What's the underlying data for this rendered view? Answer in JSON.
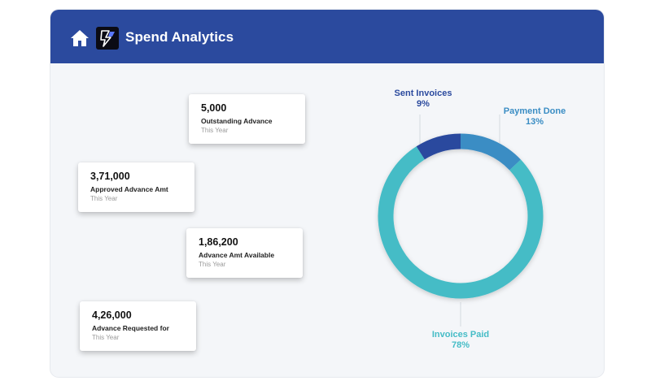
{
  "header": {
    "title": "Spend Analytics",
    "home_icon": "home-icon",
    "logo_icon": "lightning-logo-icon",
    "background": "#2b4a9e"
  },
  "cards": [
    {
      "value": "5,000",
      "label": "Outstanding Advance",
      "period": "This Year"
    },
    {
      "value": "3,71,000",
      "label": "Approved Advance Amt",
      "period": "This Year"
    },
    {
      "value": "1,86,200",
      "label": "Advance Amt Available",
      "period": "This Year"
    },
    {
      "value": "4,26,000",
      "label": "Advance Requested for",
      "period": "This Year"
    }
  ],
  "chart_data": {
    "type": "pie",
    "title": "",
    "categories": [
      "Sent Invoices",
      "Payment Done",
      "Invoices Paid"
    ],
    "values": [
      9,
      13,
      78
    ],
    "value_labels": [
      "9%",
      "13%",
      "78%"
    ],
    "colors": [
      "#2b4a9e",
      "#3a8dc4",
      "#45bcc6"
    ],
    "donut": true
  }
}
